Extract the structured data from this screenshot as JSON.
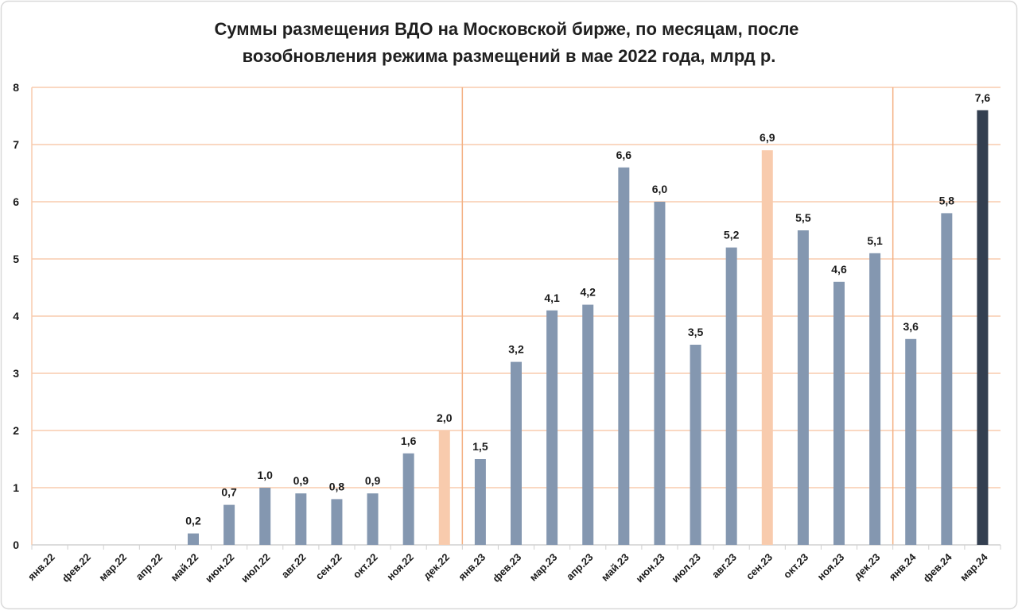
{
  "chart_data": {
    "type": "bar",
    "title_lines": [
      "Суммы размещения ВДО на Московской бирже, по месяцам, после",
      "возобновления режима размещений в мае 2022 года, млрд р."
    ],
    "categories": [
      "янв.22",
      "фев.22",
      "мар.22",
      "апр.22",
      "май.22",
      "июн.22",
      "июл.22",
      "авг.22",
      "сен.22",
      "окт.22",
      "ноя.22",
      "дек.22",
      "янв.23",
      "фев.23",
      "мар.23",
      "апр.23",
      "май.23",
      "июн.23",
      "июл.23",
      "авг.23",
      "сен.23",
      "окт.23",
      "ноя.23",
      "дек.23",
      "янв.24",
      "фев.24",
      "мар.24"
    ],
    "values": [
      null,
      null,
      null,
      null,
      0.2,
      0.7,
      1.0,
      0.9,
      0.8,
      0.9,
      1.6,
      2.0,
      1.5,
      3.2,
      4.1,
      4.2,
      6.6,
      6.0,
      3.5,
      5.2,
      6.9,
      5.5,
      4.6,
      5.1,
      3.6,
      5.8,
      7.6
    ],
    "data_labels": [
      null,
      null,
      null,
      null,
      "0,2",
      "0,7",
      "1,0",
      "0,9",
      "0,8",
      "0,9",
      "1,6",
      "2,0",
      "1,5",
      "3,2",
      "4,1",
      "4,2",
      "6,6",
      "6,0",
      "3,5",
      "5,2",
      "6,9",
      "5,5",
      "4,6",
      "5,1",
      "3,6",
      "5,8",
      "7,6"
    ],
    "bar_colors": [
      "#8497B0",
      "#8497B0",
      "#8497B0",
      "#8497B0",
      "#8497B0",
      "#8497B0",
      "#8497B0",
      "#8497B0",
      "#8497B0",
      "#8497B0",
      "#8497B0",
      "#F8CBAD",
      "#8497B0",
      "#8497B0",
      "#8497B0",
      "#8497B0",
      "#8497B0",
      "#8497B0",
      "#8497B0",
      "#8497B0",
      "#F8CBAD",
      "#8497B0",
      "#8497B0",
      "#8497B0",
      "#8497B0",
      "#8497B0",
      "#333F50"
    ],
    "ylim": [
      0,
      8
    ],
    "yticks": [
      0,
      1,
      2,
      3,
      4,
      5,
      6,
      7,
      8
    ],
    "grid": true,
    "colors": {
      "grid": "#F8CBAD",
      "year_divider": "#F4B183",
      "axis": "#D0D0D0",
      "text": "#1A1A1A",
      "frame": "#D9D9D9"
    }
  }
}
